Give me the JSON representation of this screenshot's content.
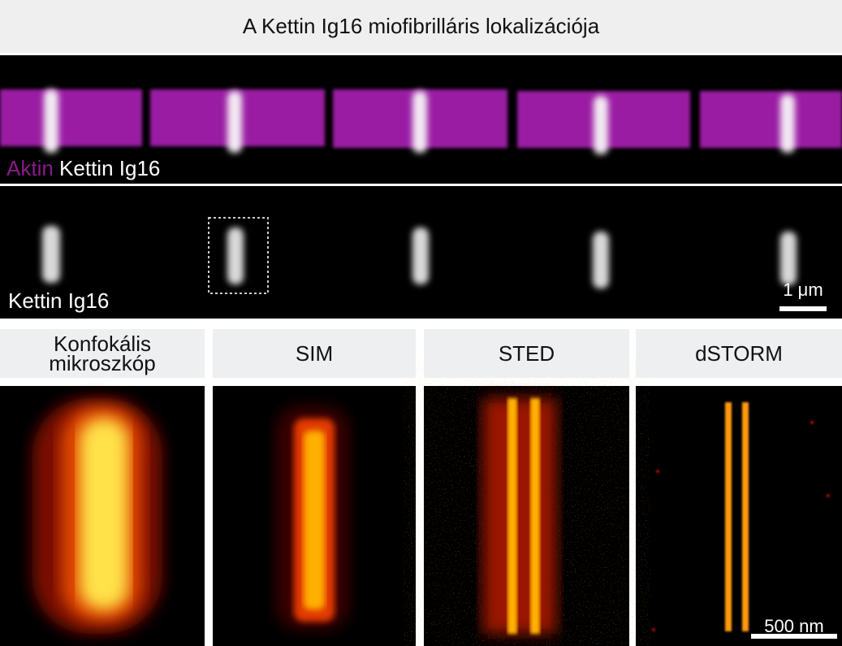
{
  "header": {
    "title": "A Kettin Ig16 miofibrilláris lokalizációja"
  },
  "overview": {
    "stain_actin": "Aktin",
    "stain_kettin": "Kettin Ig16"
  },
  "detail": {
    "stain_kettin": "Kettin Ig16",
    "scale_bar": "1 μm"
  },
  "methods": [
    {
      "title": "Konfokális mikroszkóp"
    },
    {
      "title": "SIM"
    },
    {
      "title": "STED"
    },
    {
      "title": "dSTORM"
    }
  ],
  "zoom": {
    "scale_bar": "500 nm"
  }
}
